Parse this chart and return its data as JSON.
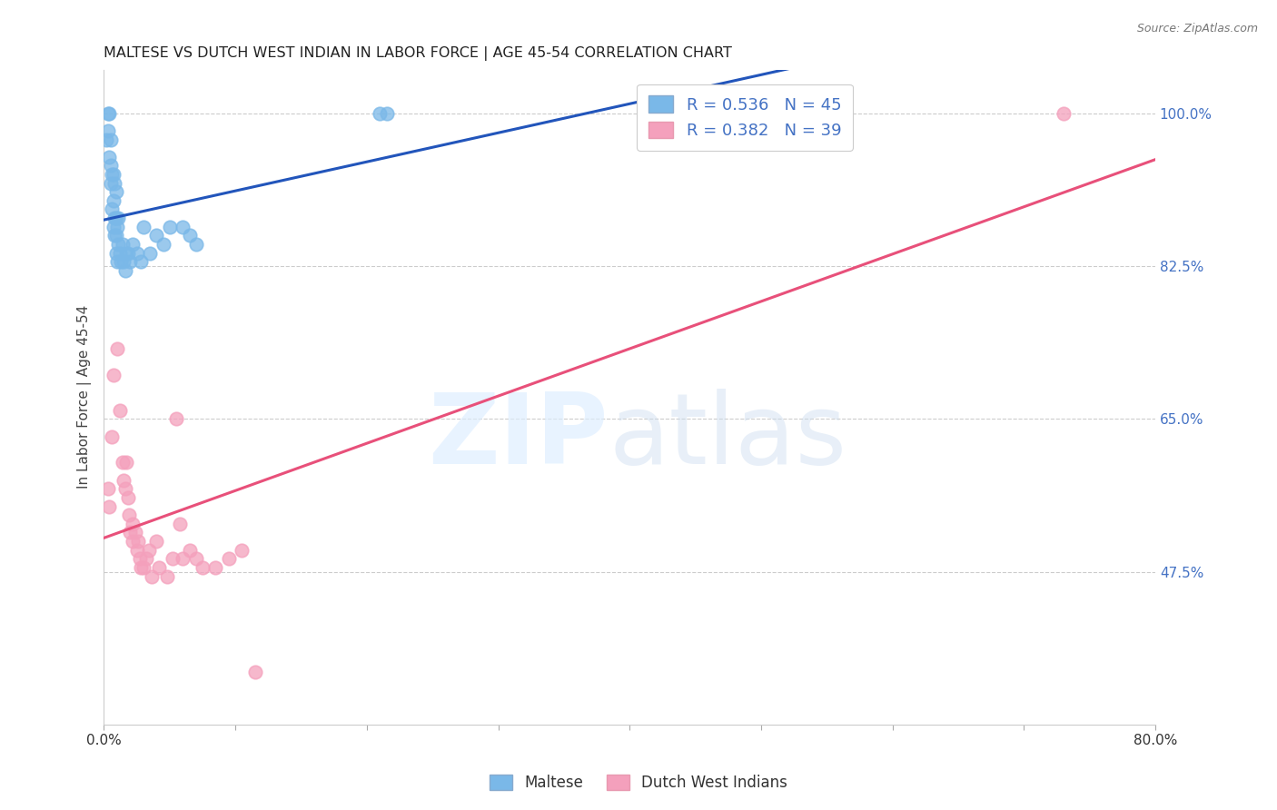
{
  "title": "MALTESE VS DUTCH WEST INDIAN IN LABOR FORCE | AGE 45-54 CORRELATION CHART",
  "source": "Source: ZipAtlas.com",
  "ylabel": "In Labor Force | Age 45-54",
  "xlim": [
    0.0,
    0.8
  ],
  "ylim": [
    0.3,
    1.05
  ],
  "xticks": [
    0.0,
    0.1,
    0.2,
    0.3,
    0.4,
    0.5,
    0.6,
    0.7,
    0.8
  ],
  "xticklabels": [
    "0.0%",
    "",
    "",
    "",
    "",
    "",
    "",
    "",
    "80.0%"
  ],
  "ytick_positions": [
    1.0,
    0.825,
    0.65,
    0.475
  ],
  "ytick_labels": [
    "100.0%",
    "82.5%",
    "65.0%",
    "47.5%"
  ],
  "maltese_R": 0.536,
  "maltese_N": 45,
  "dwi_R": 0.382,
  "dwi_N": 39,
  "maltese_color": "#7ab8e8",
  "dwi_color": "#f4a0bc",
  "maltese_line_color": "#2255bb",
  "dwi_line_color": "#e8507a",
  "maltese_x": [
    0.002,
    0.003,
    0.003,
    0.004,
    0.004,
    0.005,
    0.005,
    0.005,
    0.006,
    0.006,
    0.007,
    0.007,
    0.007,
    0.008,
    0.008,
    0.008,
    0.009,
    0.009,
    0.009,
    0.009,
    0.01,
    0.01,
    0.011,
    0.011,
    0.012,
    0.013,
    0.014,
    0.015,
    0.016,
    0.017,
    0.018,
    0.02,
    0.022,
    0.025,
    0.028,
    0.03,
    0.035,
    0.04,
    0.045,
    0.05,
    0.06,
    0.065,
    0.07,
    0.21,
    0.215
  ],
  "maltese_y": [
    0.97,
    0.98,
    1.0,
    0.95,
    1.0,
    0.92,
    0.94,
    0.97,
    0.89,
    0.93,
    0.87,
    0.9,
    0.93,
    0.86,
    0.88,
    0.92,
    0.84,
    0.86,
    0.88,
    0.91,
    0.83,
    0.87,
    0.85,
    0.88,
    0.84,
    0.83,
    0.85,
    0.83,
    0.82,
    0.84,
    0.84,
    0.83,
    0.85,
    0.84,
    0.83,
    0.87,
    0.84,
    0.86,
    0.85,
    0.87,
    0.87,
    0.86,
    0.85,
    1.0,
    1.0
  ],
  "dwi_x": [
    0.003,
    0.004,
    0.006,
    0.007,
    0.01,
    0.012,
    0.014,
    0.015,
    0.016,
    0.017,
    0.018,
    0.019,
    0.02,
    0.022,
    0.022,
    0.024,
    0.025,
    0.026,
    0.027,
    0.028,
    0.03,
    0.032,
    0.034,
    0.036,
    0.04,
    0.042,
    0.048,
    0.052,
    0.055,
    0.058,
    0.06,
    0.065,
    0.07,
    0.075,
    0.085,
    0.095,
    0.105,
    0.115,
    0.73
  ],
  "dwi_y": [
    0.57,
    0.55,
    0.63,
    0.7,
    0.73,
    0.66,
    0.6,
    0.58,
    0.57,
    0.6,
    0.56,
    0.54,
    0.52,
    0.51,
    0.53,
    0.52,
    0.5,
    0.51,
    0.49,
    0.48,
    0.48,
    0.49,
    0.5,
    0.47,
    0.51,
    0.48,
    0.47,
    0.49,
    0.65,
    0.53,
    0.49,
    0.5,
    0.49,
    0.48,
    0.48,
    0.49,
    0.5,
    0.36,
    1.0
  ]
}
